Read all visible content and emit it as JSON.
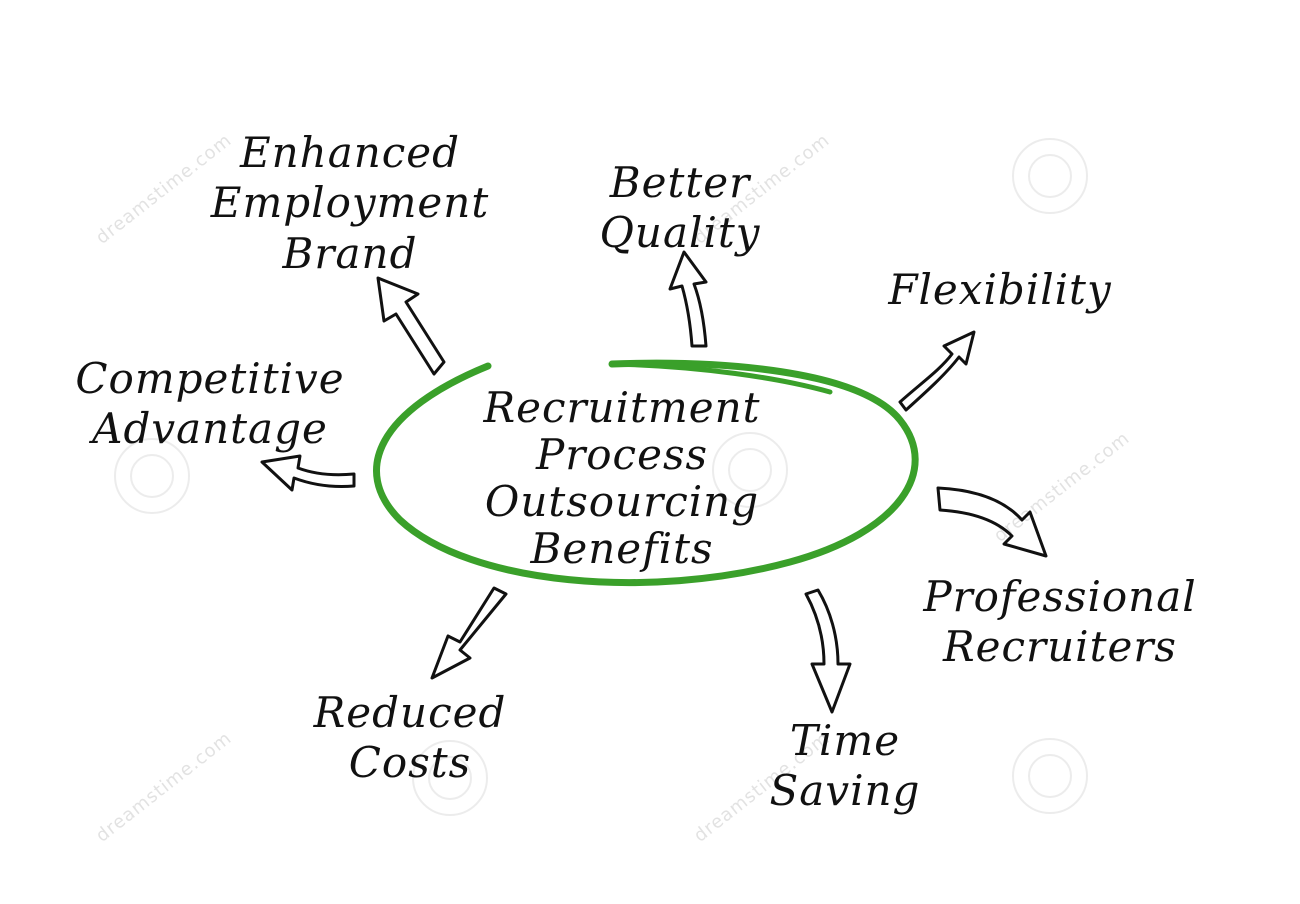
{
  "center": {
    "lines": [
      "Recruitment",
      "Process",
      "Outsourcing",
      "Benefits"
    ],
    "ring_color": "#3aa02a"
  },
  "benefits": [
    {
      "id": "enhanced-employment-brand",
      "lines": [
        "Enhanced",
        "Employment",
        "Brand"
      ]
    },
    {
      "id": "better-quality",
      "lines": [
        "Better",
        "Quality"
      ]
    },
    {
      "id": "flexibility",
      "lines": [
        "Flexibility"
      ]
    },
    {
      "id": "competitive-advantage",
      "lines": [
        "Competitive",
        "Advantage"
      ]
    },
    {
      "id": "professional-recruiters",
      "lines": [
        "Professional",
        "Recruiters"
      ]
    },
    {
      "id": "reduced-costs",
      "lines": [
        "Reduced",
        "Costs"
      ]
    },
    {
      "id": "time-saving",
      "lines": [
        "Time",
        "Saving"
      ]
    }
  ],
  "watermark": {
    "text": "dreamstime.com"
  },
  "colors": {
    "ink": "#111111",
    "ring": "#3aa02a",
    "background": "#ffffff"
  }
}
